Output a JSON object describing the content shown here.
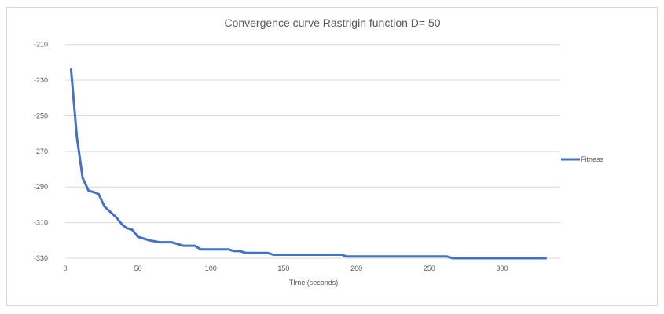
{
  "chart_data": {
    "type": "line",
    "title": "Convergence curve Rastrigin function D= 50",
    "xlabel": "TIme (seconds)",
    "ylabel": "",
    "xlim": [
      0,
      340
    ],
    "ylim": [
      -330,
      -200
    ],
    "xticks": [
      0,
      50,
      100,
      150,
      200,
      250,
      300
    ],
    "yticks": [
      -210,
      -230,
      -250,
      -270,
      -290,
      -310,
      -330
    ],
    "grid": true,
    "legend_position": "right",
    "line_color": "#4472C4",
    "series": [
      {
        "name": "Fitness",
        "x": [
          4,
          8,
          12,
          16,
          20,
          23,
          27,
          31,
          35,
          39,
          42,
          46,
          50,
          54,
          58,
          65,
          73,
          81,
          89,
          93,
          100,
          112,
          116,
          120,
          124,
          139,
          143,
          150,
          190,
          193,
          262,
          266,
          330
        ],
        "y": [
          -224,
          -262,
          -285,
          -292,
          -293,
          -294,
          -301,
          -304,
          -307,
          -311,
          -313,
          -314,
          -318,
          -319,
          -320,
          -321,
          -321,
          -323,
          -323,
          -325,
          -325,
          -325,
          -326,
          -326,
          -327,
          -327,
          -328,
          -328,
          -328,
          -329,
          -329,
          -330,
          -330
        ]
      }
    ]
  }
}
